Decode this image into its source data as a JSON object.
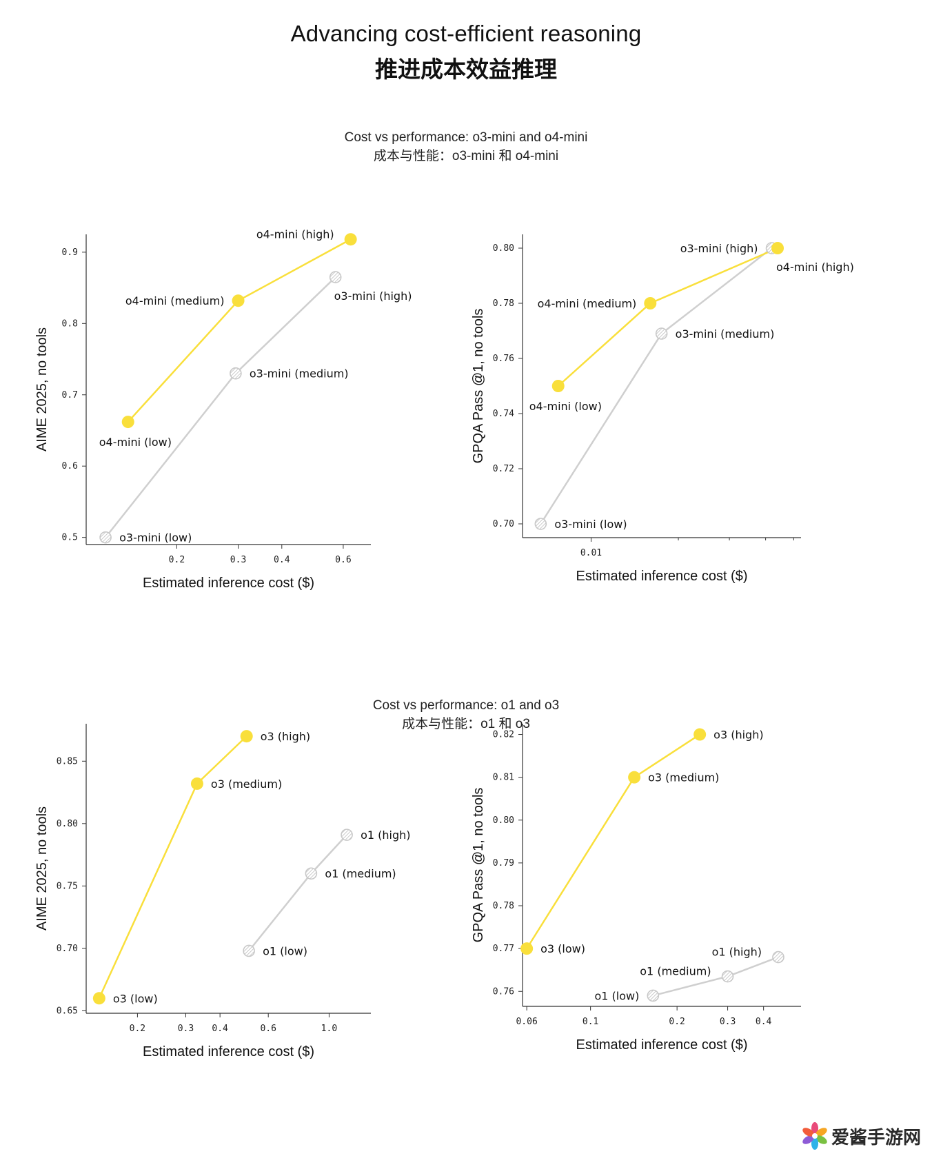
{
  "title_en": "Advancing cost-efficient reasoning",
  "title_zh": "推进成本效益推理",
  "section1": {
    "title_en": "Cost vs performance: o3-mini and o4-mini",
    "title_zh": "成本与性能：o3-mini 和 o4-mini"
  },
  "section2": {
    "title_en": "Cost vs performance: o1 and o3",
    "title_zh": "成本与性能：o1 和 o3"
  },
  "colors": {
    "yellow": "#F9DF3B",
    "gray": "#CFCFCF",
    "axis": "#333333"
  },
  "watermark": {
    "text": "爱酱手游网"
  },
  "chart_data": [
    {
      "id": "chart1",
      "type": "scatter",
      "xscale": "log",
      "xlabel": "Estimated inference cost ($)",
      "ylabel": "AIME 2025, no tools",
      "xlim": [
        0.11,
        0.72
      ],
      "ylim": [
        0.49,
        0.925
      ],
      "xticks": [
        0.2,
        0.3,
        0.4,
        0.6
      ],
      "xtick_labels": [
        "0.2",
        "0.3",
        "0.4",
        "0.6"
      ],
      "yticks": [
        0.5,
        0.6,
        0.7,
        0.8,
        0.9
      ],
      "ytick_labels": [
        "0.5",
        "0.6",
        "0.7",
        "0.8",
        "0.9"
      ],
      "series": [
        {
          "name": "o3-mini",
          "style": "gray",
          "points": [
            {
              "x": 0.125,
              "y": 0.5,
              "label": "o3-mini (low)",
              "pos": "right"
            },
            {
              "x": 0.295,
              "y": 0.73,
              "label": "o3-mini (medium)",
              "pos": "right"
            },
            {
              "x": 0.57,
              "y": 0.865,
              "label": "o3-mini (high)",
              "pos": "below-right"
            }
          ]
        },
        {
          "name": "o4-mini",
          "style": "yellow",
          "points": [
            {
              "x": 0.145,
              "y": 0.662,
              "label": "o4-mini (low)",
              "pos": "below"
            },
            {
              "x": 0.3,
              "y": 0.832,
              "label": "o4-mini (medium)",
              "pos": "left"
            },
            {
              "x": 0.63,
              "y": 0.918,
              "label": "o4-mini (high)",
              "pos": "above-left"
            }
          ]
        }
      ]
    },
    {
      "id": "chart2",
      "type": "scatter",
      "xscale": "log",
      "xlabel": "Estimated inference cost ($)",
      "ylabel": "GPQA Pass @1, no tools",
      "xlim": [
        0.0058,
        0.053
      ],
      "ylim": [
        0.695,
        0.805
      ],
      "xticks": [
        0.01
      ],
      "xtick_labels": [
        "0.01"
      ],
      "minor_xticks": [
        0.02,
        0.03,
        0.04,
        0.05
      ],
      "yticks": [
        0.7,
        0.72,
        0.74,
        0.76,
        0.78,
        0.8
      ],
      "ytick_labels": [
        "0.70",
        "0.72",
        "0.74",
        "0.76",
        "0.78",
        "0.80"
      ],
      "series": [
        {
          "name": "o3-mini",
          "style": "gray",
          "points": [
            {
              "x": 0.0067,
              "y": 0.7,
              "label": "o3-mini (low)",
              "pos": "right"
            },
            {
              "x": 0.0175,
              "y": 0.769,
              "label": "o3-mini (medium)",
              "pos": "right"
            },
            {
              "x": 0.042,
              "y": 0.8,
              "label": "o3-mini (high)",
              "pos": "left"
            }
          ]
        },
        {
          "name": "o4-mini",
          "style": "yellow",
          "points": [
            {
              "x": 0.0077,
              "y": 0.75,
              "label": "o4-mini (low)",
              "pos": "below"
            },
            {
              "x": 0.016,
              "y": 0.78,
              "label": "o4-mini (medium)",
              "pos": "left"
            },
            {
              "x": 0.044,
              "y": 0.8,
              "label": "o4-mini (high)",
              "pos": "below-right"
            }
          ]
        }
      ]
    },
    {
      "id": "chart3",
      "type": "scatter",
      "xscale": "log",
      "xlabel": "Estimated inference cost ($)",
      "ylabel": "AIME 2025, no tools",
      "xlim": [
        0.13,
        1.42
      ],
      "ylim": [
        0.648,
        0.88
      ],
      "xticks": [
        0.2,
        0.3,
        0.4,
        0.6,
        1.0
      ],
      "xtick_labels": [
        "0.2",
        "0.3",
        "0.4",
        "0.6",
        "1.0"
      ],
      "yticks": [
        0.65,
        0.7,
        0.75,
        0.8,
        0.85
      ],
      "ytick_labels": [
        "0.65",
        "0.70",
        "0.75",
        "0.80",
        "0.85"
      ],
      "series": [
        {
          "name": "o1",
          "style": "gray",
          "points": [
            {
              "x": 0.51,
              "y": 0.698,
              "label": "o1 (low)",
              "pos": "right"
            },
            {
              "x": 0.86,
              "y": 0.76,
              "label": "o1 (medium)",
              "pos": "right"
            },
            {
              "x": 1.16,
              "y": 0.791,
              "label": "o1 (high)",
              "pos": "right"
            }
          ]
        },
        {
          "name": "o3",
          "style": "yellow",
          "points": [
            {
              "x": 0.145,
              "y": 0.66,
              "label": "o3 (low)",
              "pos": "right"
            },
            {
              "x": 0.33,
              "y": 0.832,
              "label": "o3 (medium)",
              "pos": "right"
            },
            {
              "x": 0.5,
              "y": 0.87,
              "label": "o3 (high)",
              "pos": "right"
            }
          ]
        }
      ]
    },
    {
      "id": "chart4",
      "type": "scatter",
      "xscale": "log",
      "xlabel": "Estimated inference cost ($)",
      "ylabel": "GPQA Pass @1, no tools",
      "xlim": [
        0.058,
        0.54
      ],
      "ylim": [
        0.7565,
        0.8225
      ],
      "xticks": [
        0.06,
        0.1,
        0.2,
        0.3,
        0.4
      ],
      "xtick_labels": [
        "0.06",
        "0.1",
        "0.2",
        "0.3",
        "0.4"
      ],
      "yticks": [
        0.76,
        0.77,
        0.78,
        0.79,
        0.8,
        0.81,
        0.82
      ],
      "ytick_labels": [
        "0.76",
        "0.77",
        "0.78",
        "0.79",
        "0.80",
        "0.81",
        "0.82"
      ],
      "series": [
        {
          "name": "o1",
          "style": "gray",
          "points": [
            {
              "x": 0.165,
              "y": 0.759,
              "label": "o1 (low)",
              "pos": "left"
            },
            {
              "x": 0.3,
              "y": 0.7635,
              "label": "o1 (medium)",
              "pos": "above-left"
            },
            {
              "x": 0.45,
              "y": 0.768,
              "label": "o1 (high)",
              "pos": "above-left"
            }
          ]
        },
        {
          "name": "o3",
          "style": "yellow",
          "points": [
            {
              "x": 0.06,
              "y": 0.77,
              "label": "o3 (low)",
              "pos": "right"
            },
            {
              "x": 0.142,
              "y": 0.81,
              "label": "o3 (medium)",
              "pos": "right"
            },
            {
              "x": 0.24,
              "y": 0.82,
              "label": "o3 (high)",
              "pos": "right"
            }
          ]
        }
      ]
    }
  ]
}
